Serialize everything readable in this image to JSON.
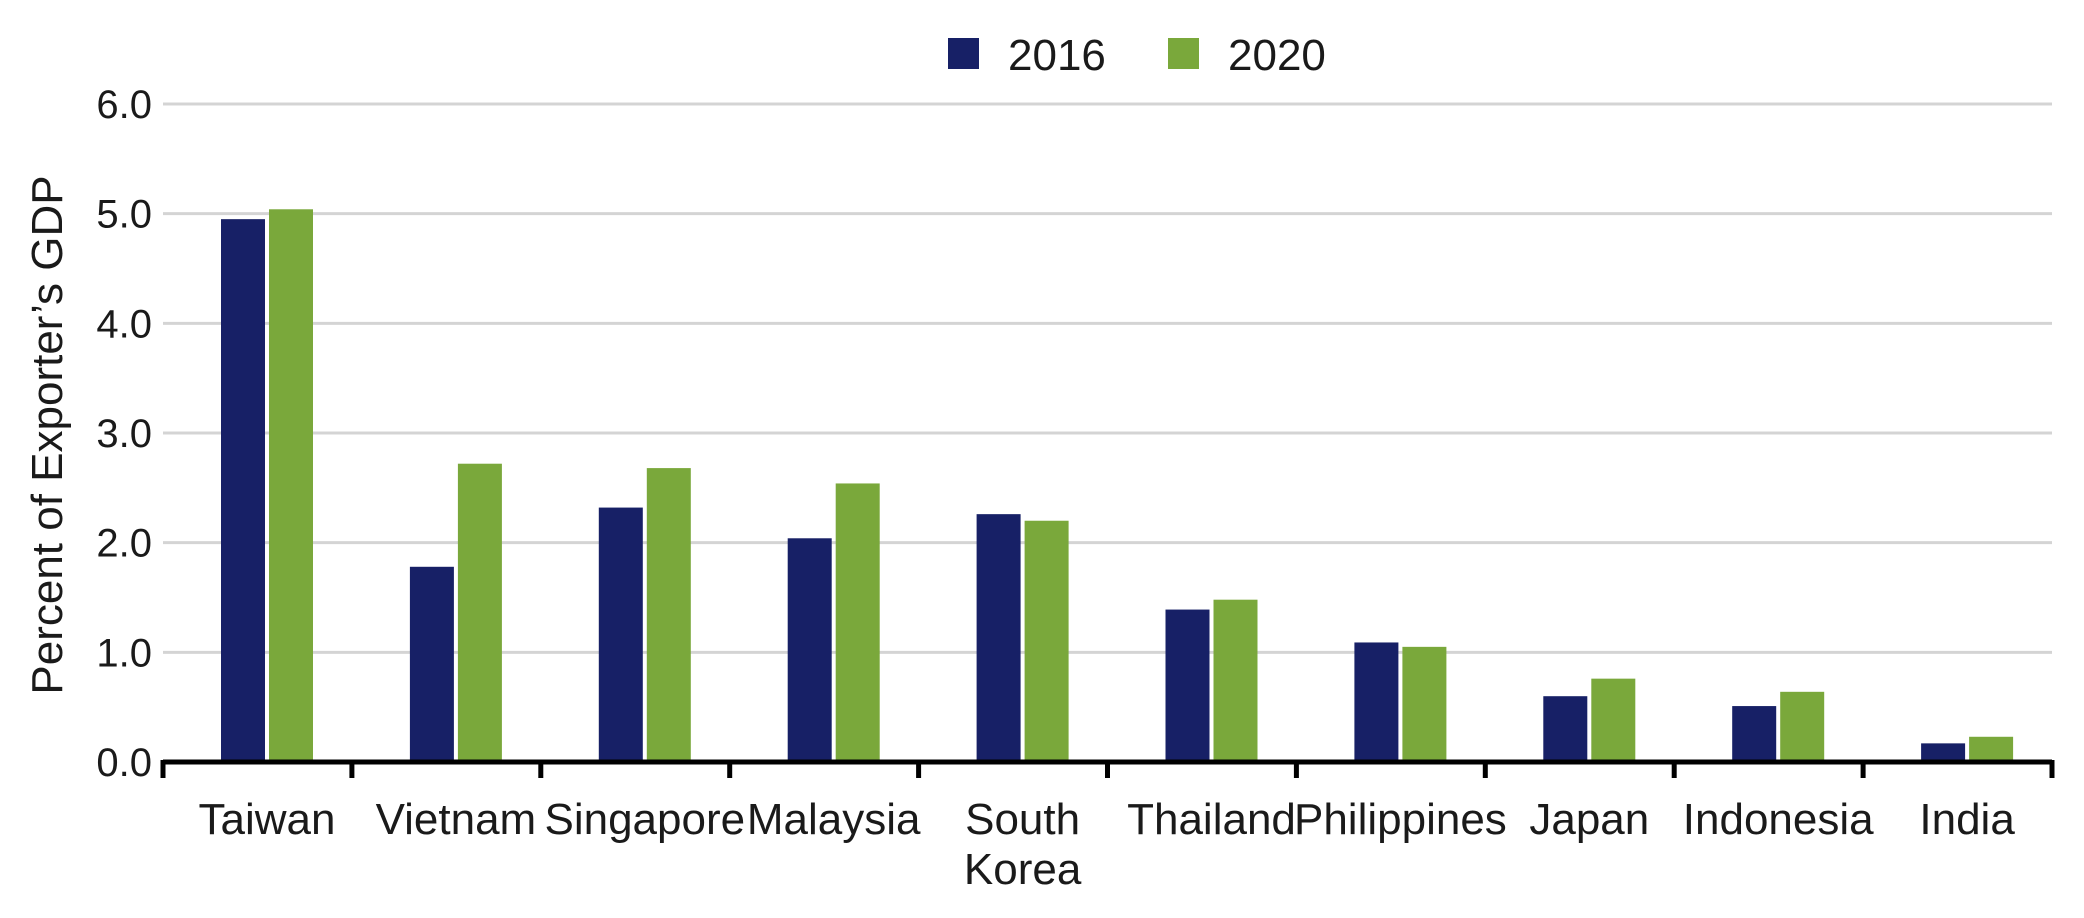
{
  "chart_data": {
    "type": "bar",
    "ylabel": "Percent of Exporter’s GDP",
    "xlabel": "",
    "ylim": [
      0,
      6
    ],
    "yticks": [
      "0.0",
      "1.0",
      "2.0",
      "3.0",
      "4.0",
      "5.0",
      "6.0"
    ],
    "grid": true,
    "legend_position": "top-center",
    "categories": [
      [
        "Taiwan"
      ],
      [
        "Vietnam"
      ],
      [
        "Singapore"
      ],
      [
        "Malaysia"
      ],
      [
        "South",
        "Korea"
      ],
      [
        "Thailand"
      ],
      [
        "Philippines"
      ],
      [
        "Japan"
      ],
      [
        "Indonesia"
      ],
      [
        "India"
      ]
    ],
    "series": [
      {
        "name": "2016",
        "color": "#172066",
        "values": [
          4.95,
          1.78,
          2.32,
          2.04,
          2.26,
          1.39,
          1.09,
          0.6,
          0.51,
          0.17
        ]
      },
      {
        "name": "2020",
        "color": "#7aa83b",
        "values": [
          5.04,
          2.72,
          2.68,
          2.54,
          2.2,
          1.48,
          1.05,
          0.76,
          0.64,
          0.23
        ]
      }
    ],
    "colors": {
      "grid": "#d4d4d4",
      "axis": "#000000"
    }
  }
}
